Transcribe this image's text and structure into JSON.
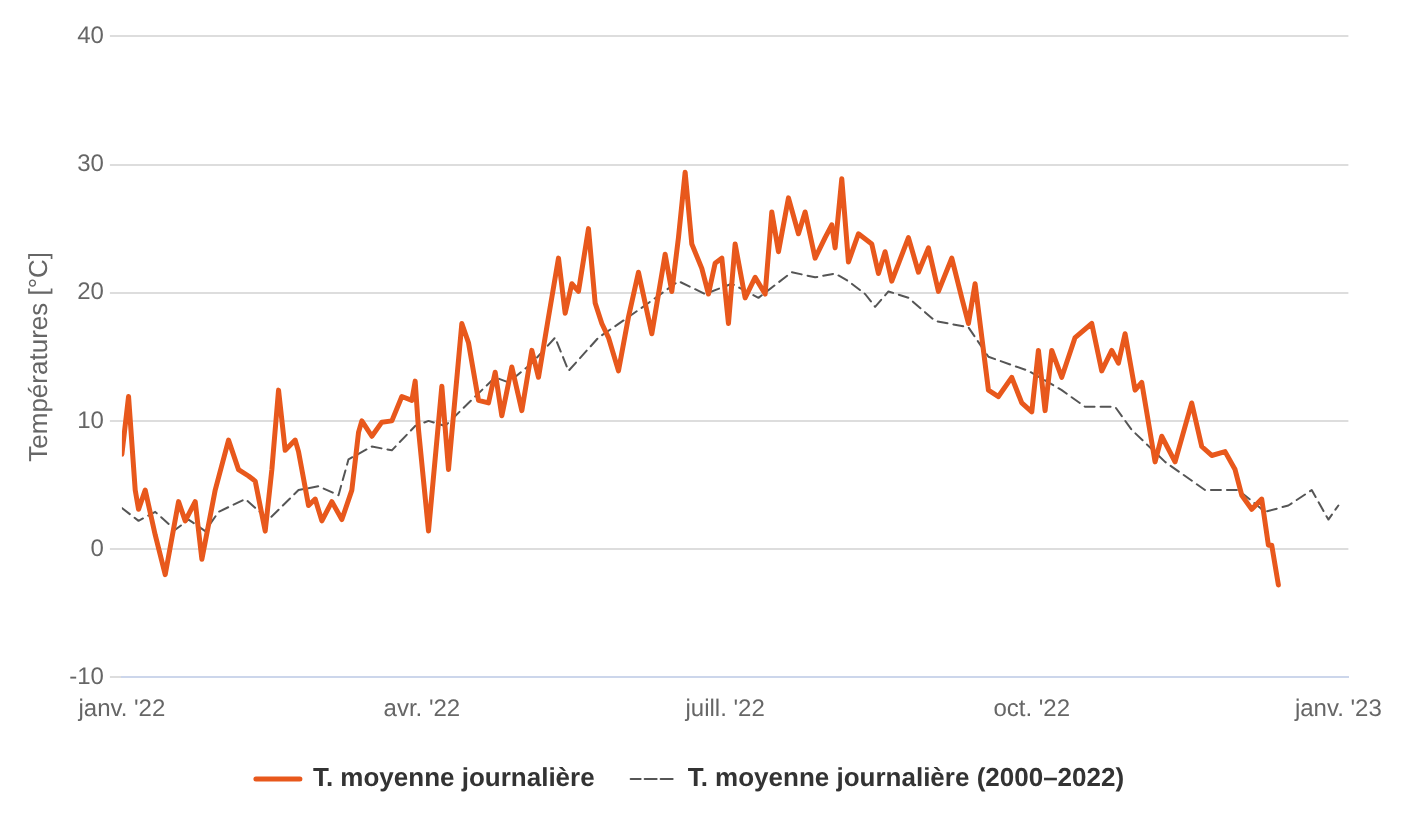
{
  "chart_data": {
    "type": "line",
    "ylabel": "Températures [°C]",
    "xlim": [
      "2022-01-01",
      "2023-01-04"
    ],
    "xticks": [
      {
        "value": "2022-01-01",
        "label": "janv. '22"
      },
      {
        "value": "2022-04-01",
        "label": "avr. '22"
      },
      {
        "value": "2022-07-01",
        "label": "juill. '22"
      },
      {
        "value": "2022-10-01",
        "label": "oct. '22"
      },
      {
        "value": "2023-01-01",
        "label": "janv. '23"
      }
    ],
    "ylim": [
      -10,
      40
    ],
    "yticks": [
      -10,
      0,
      10,
      20,
      30,
      40
    ],
    "grid": "y",
    "legend": "bottom",
    "marker": "none",
    "series": [
      {
        "name": "T. moyenne journalière",
        "color": "#e8581c",
        "line_style": "solid",
        "x": [
          "2022-01-01",
          "2022-01-03",
          "2022-01-05",
          "2022-01-06",
          "2022-01-08",
          "2022-01-11",
          "2022-01-14",
          "2022-01-18",
          "2022-01-20",
          "2022-01-23",
          "2022-01-25",
          "2022-01-29",
          "2022-02-02",
          "2022-02-05",
          "2022-02-08",
          "2022-02-10",
          "2022-02-13",
          "2022-02-15",
          "2022-02-17",
          "2022-02-19",
          "2022-02-22",
          "2022-02-23",
          "2022-02-26",
          "2022-02-28",
          "2022-03-02",
          "2022-03-05",
          "2022-03-08",
          "2022-03-11",
          "2022-03-13",
          "2022-03-14",
          "2022-03-17",
          "2022-03-20",
          "2022-03-23",
          "2022-03-26",
          "2022-03-29",
          "2022-03-30",
          "2022-03-31",
          "2022-04-03",
          "2022-04-07",
          "2022-04-09",
          "2022-04-13",
          "2022-04-15",
          "2022-04-18",
          "2022-04-21",
          "2022-04-23",
          "2022-04-25",
          "2022-04-28",
          "2022-05-01",
          "2022-05-04",
          "2022-05-06",
          "2022-05-09",
          "2022-05-12",
          "2022-05-14",
          "2022-05-16",
          "2022-05-18",
          "2022-05-21",
          "2022-05-23",
          "2022-05-25",
          "2022-05-27",
          "2022-05-30",
          "2022-06-02",
          "2022-06-05",
          "2022-06-09",
          "2022-06-13",
          "2022-06-15",
          "2022-06-17",
          "2022-06-19",
          "2022-06-21",
          "2022-06-24",
          "2022-06-26",
          "2022-06-28",
          "2022-06-30",
          "2022-07-02",
          "2022-07-04",
          "2022-07-07",
          "2022-07-10",
          "2022-07-13",
          "2022-07-15",
          "2022-07-17",
          "2022-07-20",
          "2022-07-23",
          "2022-07-25",
          "2022-07-28",
          "2022-07-31",
          "2022-08-02",
          "2022-08-03",
          "2022-08-05",
          "2022-08-07",
          "2022-08-10",
          "2022-08-14",
          "2022-08-16",
          "2022-08-18",
          "2022-08-20",
          "2022-08-25",
          "2022-08-28",
          "2022-08-31",
          "2022-09-03",
          "2022-09-07",
          "2022-09-10",
          "2022-09-12",
          "2022-09-14",
          "2022-09-18",
          "2022-09-21",
          "2022-09-25",
          "2022-09-28",
          "2022-10-01",
          "2022-10-03",
          "2022-10-05",
          "2022-10-07",
          "2022-10-10",
          "2022-10-14",
          "2022-10-19",
          "2022-10-22",
          "2022-10-25",
          "2022-10-27",
          "2022-10-29",
          "2022-11-01",
          "2022-11-03",
          "2022-11-05",
          "2022-11-07",
          "2022-11-09",
          "2022-11-13",
          "2022-11-18",
          "2022-11-21",
          "2022-11-24",
          "2022-11-28",
          "2022-12-01",
          "2022-12-03",
          "2022-12-06",
          "2022-12-09",
          "2022-12-11",
          "2022-12-12",
          "2022-12-14"
        ],
        "values": [
          7.4,
          11.9,
          4.6,
          3.1,
          4.6,
          1.1,
          -2.0,
          3.7,
          2.2,
          3.7,
          -0.8,
          4.6,
          8.5,
          6.2,
          5.7,
          5.3,
          1.4,
          6.2,
          12.4,
          7.7,
          8.5,
          7.6,
          3.4,
          3.9,
          2.2,
          3.7,
          2.3,
          4.6,
          9.1,
          10.0,
          8.8,
          9.9,
          10.0,
          11.9,
          11.6,
          13.1,
          9.3,
          1.4,
          12.7,
          6.2,
          17.6,
          16.1,
          11.6,
          11.4,
          13.8,
          10.4,
          14.2,
          10.8,
          15.5,
          13.4,
          18.1,
          22.7,
          18.4,
          20.7,
          20.1,
          25.0,
          19.2,
          17.6,
          16.5,
          13.9,
          18.1,
          21.6,
          16.8,
          23.0,
          20.1,
          24.3,
          29.4,
          23.8,
          21.9,
          19.9,
          22.3,
          22.7,
          17.6,
          23.8,
          19.6,
          21.2,
          19.9,
          26.3,
          23.2,
          27.4,
          24.6,
          26.3,
          22.7,
          24.3,
          25.3,
          23.5,
          28.9,
          22.4,
          24.6,
          23.8,
          21.5,
          23.2,
          20.9,
          24.3,
          21.6,
          23.5,
          20.1,
          22.7,
          19.6,
          17.6,
          20.7,
          12.4,
          11.9,
          13.4,
          11.4,
          10.7,
          15.5,
          10.8,
          15.5,
          13.4,
          16.5,
          17.6,
          13.9,
          15.5,
          14.5,
          16.8,
          12.4,
          13.0,
          9.9,
          6.8,
          8.8,
          6.8,
          11.4,
          8.0,
          7.3,
          7.6,
          6.2,
          4.2,
          3.1,
          3.9,
          0.3,
          0.3,
          -2.8
        ]
      },
      {
        "name": "T. moyenne journalière (2000–2022)",
        "color": "#555555",
        "line_style": "dashed",
        "x": [
          "2022-01-01",
          "2022-01-06",
          "2022-01-11",
          "2022-01-17",
          "2022-01-21",
          "2022-01-26",
          "2022-01-30",
          "2022-02-07",
          "2022-02-14",
          "2022-02-23",
          "2022-03-01",
          "2022-03-07",
          "2022-03-10",
          "2022-03-17",
          "2022-03-23",
          "2022-03-30",
          "2022-04-03",
          "2022-04-08",
          "2022-04-15",
          "2022-04-23",
          "2022-04-27",
          "2022-05-04",
          "2022-05-11",
          "2022-05-15",
          "2022-05-24",
          "2022-06-02",
          "2022-06-08",
          "2022-06-17",
          "2022-06-25",
          "2022-07-03",
          "2022-07-11",
          "2022-07-21",
          "2022-07-28",
          "2022-08-03",
          "2022-08-07",
          "2022-08-12",
          "2022-08-15",
          "2022-08-19",
          "2022-08-25",
          "2022-09-02",
          "2022-09-12",
          "2022-09-18",
          "2022-09-30",
          "2022-10-10",
          "2022-10-17",
          "2022-10-26",
          "2022-10-31",
          "2022-11-10",
          "2022-11-22",
          "2022-12-02",
          "2022-12-10",
          "2022-12-17",
          "2022-12-24",
          "2022-12-29",
          "2023-01-01"
        ],
        "values": [
          3.2,
          2.2,
          2.9,
          1.5,
          2.3,
          1.4,
          2.9,
          3.9,
          2.3,
          4.6,
          4.9,
          4.2,
          7.0,
          8.0,
          7.7,
          9.6,
          10.0,
          9.6,
          11.4,
          13.4,
          13.0,
          14.5,
          16.5,
          13.9,
          16.5,
          18.1,
          19.2,
          20.9,
          19.9,
          20.7,
          19.6,
          21.6,
          21.2,
          21.5,
          20.9,
          19.9,
          18.9,
          20.1,
          19.6,
          17.8,
          17.3,
          15.0,
          13.9,
          12.4,
          11.1,
          11.1,
          9.3,
          6.8,
          4.6,
          4.6,
          2.9,
          3.4,
          4.6,
          2.3,
          3.4
        ]
      }
    ]
  }
}
